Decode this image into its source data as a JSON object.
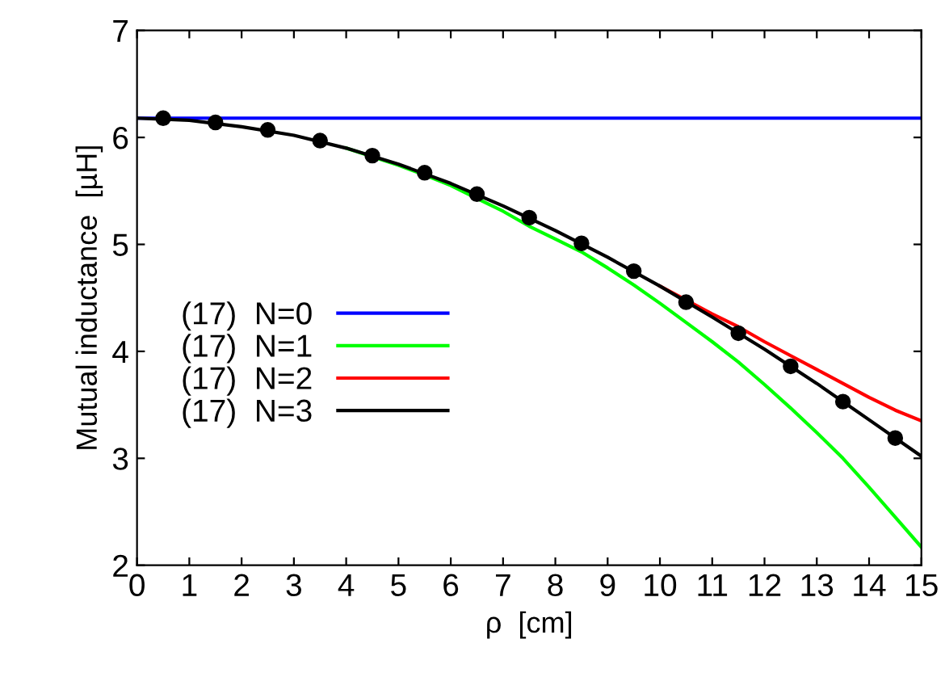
{
  "chart_data": {
    "type": "line",
    "xlabel": "ρ  [cm]",
    "ylabel": "Mutual inductance  [µH]",
    "xlim": [
      0,
      15
    ],
    "ylim": [
      2,
      7
    ],
    "xticks": [
      0,
      1,
      2,
      3,
      4,
      5,
      6,
      7,
      8,
      9,
      10,
      11,
      12,
      13,
      14,
      15
    ],
    "yticks": [
      2,
      3,
      4,
      5,
      6,
      7
    ],
    "grid": false,
    "legend": "left",
    "series": [
      {
        "name": "(17)  N=0",
        "color": "#0000ff",
        "x": [
          0,
          15
        ],
        "values": [
          6.18,
          6.18
        ]
      },
      {
        "name": "(17)  N=1",
        "color": "#00ff00",
        "x": [
          4,
          5,
          5.5,
          6,
          6.5,
          7,
          7.5,
          8,
          8.5,
          9,
          9.5,
          10,
          10.5,
          11,
          11.5,
          12,
          12.5,
          13,
          13.5,
          14,
          14.5,
          15
        ],
        "values": [
          5.9,
          5.74,
          5.65,
          5.55,
          5.43,
          5.31,
          5.17,
          5.05,
          4.93,
          4.78,
          4.62,
          4.45,
          4.27,
          4.09,
          3.9,
          3.69,
          3.47,
          3.24,
          3.0,
          2.73,
          2.45,
          2.17
        ]
      },
      {
        "name": "(17)  N=2",
        "color": "#ff0000",
        "x": [
          10,
          10.5,
          11,
          11.5,
          12,
          12.5,
          13,
          13.5,
          14,
          14.5,
          15
        ],
        "values": [
          4.61,
          4.48,
          4.35,
          4.23,
          4.09,
          3.96,
          3.83,
          3.7,
          3.57,
          3.45,
          3.35
        ]
      },
      {
        "name": "(17)  N=3",
        "color": "#000000",
        "x": [
          0,
          1,
          2,
          3,
          4,
          5,
          6,
          7,
          8,
          9,
          10,
          11,
          12,
          13,
          14,
          15
        ],
        "values": [
          6.18,
          6.16,
          6.1,
          6.02,
          5.9,
          5.75,
          5.57,
          5.36,
          5.13,
          4.88,
          4.61,
          4.32,
          4.02,
          3.7,
          3.36,
          3.02
        ]
      },
      {
        "type": "scatter",
        "marker": "circle",
        "color": "#000000",
        "x": [
          0.5,
          1.5,
          2.5,
          3.5,
          4.5,
          5.5,
          6.5,
          7.5,
          8.5,
          9.5,
          10.5,
          11.5,
          12.5,
          13.5,
          14.5
        ],
        "values": [
          6.18,
          6.14,
          6.07,
          5.97,
          5.83,
          5.67,
          5.47,
          5.25,
          5.01,
          4.75,
          4.46,
          4.17,
          3.86,
          3.53,
          3.19
        ]
      }
    ]
  }
}
